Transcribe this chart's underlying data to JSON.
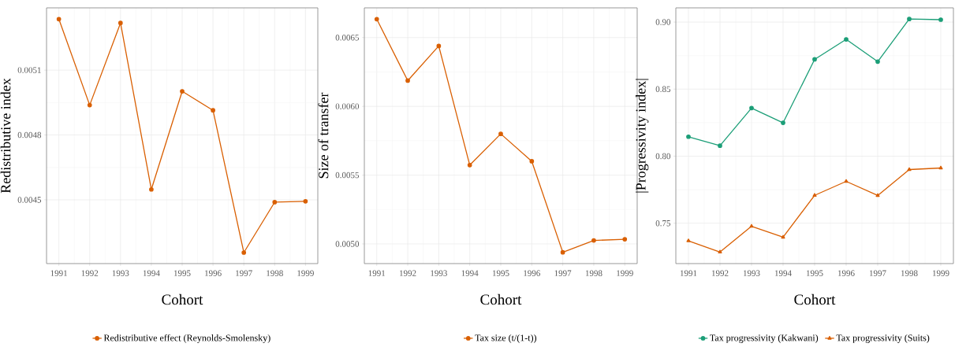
{
  "chart_data": [
    {
      "type": "line",
      "xlabel": "Cohort",
      "ylabel": "Redistributive index",
      "categories": [
        "1991",
        "1992",
        "1993",
        "1994",
        "1995",
        "1996",
        "1997",
        "1998",
        "1999"
      ],
      "ylim": [
        0.004205,
        0.005388
      ],
      "yticks": [
        0.0045,
        0.0048,
        0.0051
      ],
      "grid": true,
      "legend": "bottom",
      "marker": "circle",
      "series": [
        {
          "name": "Redistributive effect (Reynolds-Smolensky)",
          "color": "#d95f02",
          "values": [
            0.005336,
            0.004938,
            0.005318,
            0.004548,
            0.005002,
            0.004914,
            0.004256,
            0.004489,
            0.004493
          ]
        }
      ]
    },
    {
      "type": "line",
      "xlabel": "Cohort",
      "ylabel": "Size of transfer",
      "categories": [
        "1991",
        "1992",
        "1993",
        "1994",
        "1995",
        "1996",
        "1997",
        "1998",
        "1999"
      ],
      "ylim": [
        0.004857,
        0.006716
      ],
      "yticks": [
        {
          "value": 0.005,
          "label": "0.0050"
        },
        0.0055,
        {
          "value": 0.006,
          "label": "0.0060"
        },
        0.0065
      ],
      "grid": true,
      "legend": "bottom",
      "marker": "circle",
      "series": [
        {
          "name": "Tax size (t/(1-t))",
          "color": "#d95f02",
          "values": [
            0.006634,
            0.006187,
            0.006439,
            0.005573,
            0.0058,
            0.005601,
            0.004939,
            0.005025,
            0.005034
          ]
        }
      ]
    },
    {
      "type": "line",
      "xlabel": "Cohort",
      "ylabel": "|Progressivity index|",
      "categories": [
        "1991",
        "1992",
        "1993",
        "1994",
        "1995",
        "1996",
        "1997",
        "1998",
        "1999"
      ],
      "ylim": [
        0.7199,
        0.9106
      ],
      "yticks": [
        0.75,
        {
          "value": 0.8,
          "label": "0.80"
        },
        0.85,
        {
          "value": 0.9,
          "label": "0.90"
        }
      ],
      "grid": true,
      "legend": "bottom",
      "series": [
        {
          "name": "Tax progressivity (Kakwani)",
          "color": "#1b9e77",
          "marker": "circle",
          "values": [
            0.8145,
            0.8078,
            0.8359,
            0.8249,
            0.8722,
            0.8871,
            0.8705,
            0.9023,
            0.9018
          ]
        },
        {
          "name": "Tax progressivity (Suits)",
          "color": "#d95f02",
          "marker": "triangle",
          "values": [
            0.7369,
            0.7285,
            0.7477,
            0.7396,
            0.7708,
            0.7812,
            0.7707,
            0.79,
            0.7912
          ]
        }
      ]
    }
  ]
}
